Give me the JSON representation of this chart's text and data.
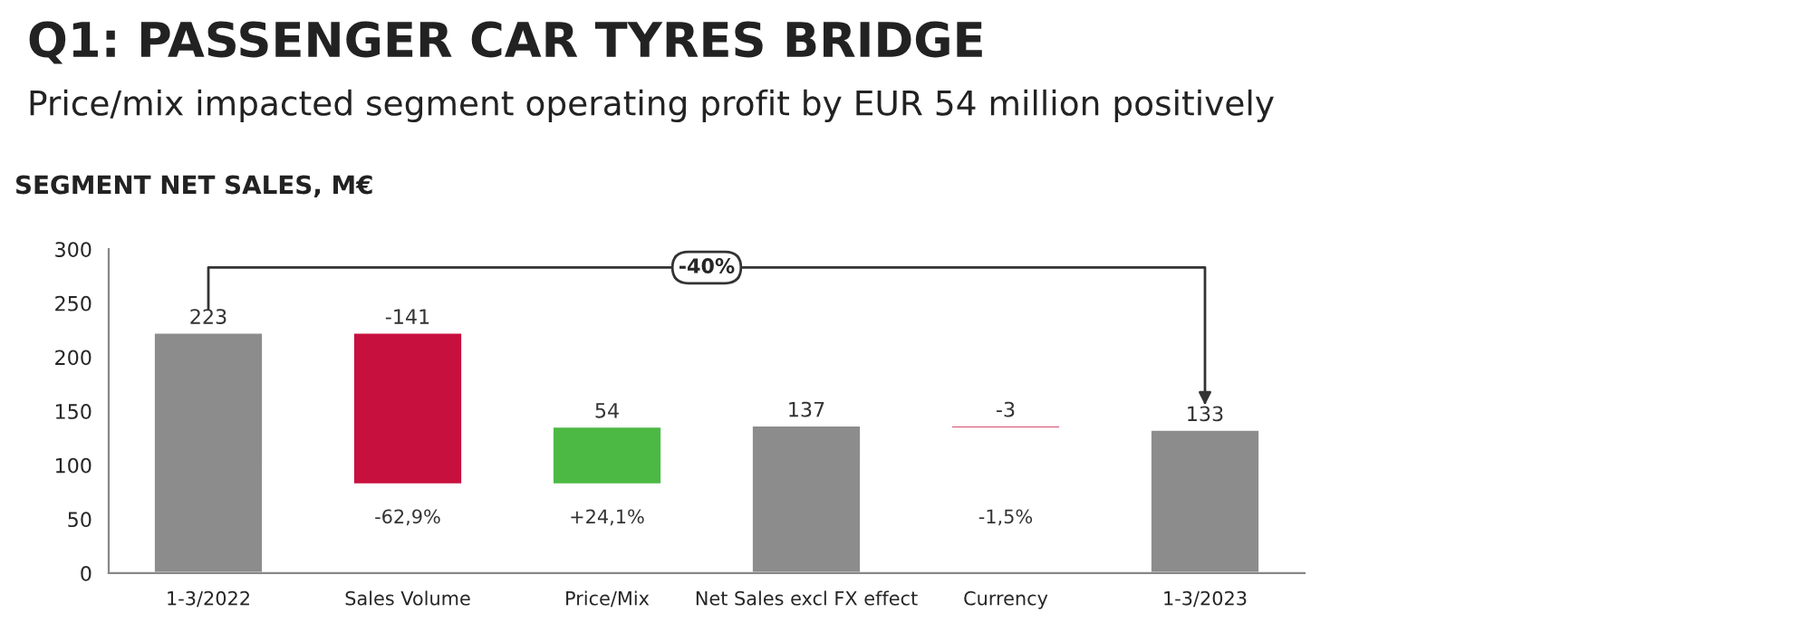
{
  "chart_data": {
    "type": "bar",
    "title": "Q1: PASSENGER CAR TYRES BRIDGE",
    "subtitle": "Price/mix impacted segment operating profit by EUR 54 million positively",
    "categories": [
      "1-3/2022",
      "Sales Volume",
      "Price/Mix",
      "Net Sales excl FX effect",
      "Currency",
      "1-3/2023"
    ],
    "values": [
      223,
      -141,
      54,
      137,
      -3,
      133
    ],
    "base": [
      0,
      223,
      82,
      0,
      137,
      0
    ],
    "colors": [
      "#8c8c8c",
      "#c8103e",
      "#4cb944",
      "#8c8c8c",
      "#c8103e",
      "#8c8c8c"
    ],
    "data_labels": true,
    "ylim": [
      0,
      300
    ],
    "yticks": [
      0,
      50,
      100,
      150,
      200,
      250,
      300
    ],
    "grid": false,
    "annotations": [
      "SEGMENT NET SALES, M€",
      "-62,9%",
      "+24,1%",
      "-1,5%",
      "-40%"
    ]
  }
}
